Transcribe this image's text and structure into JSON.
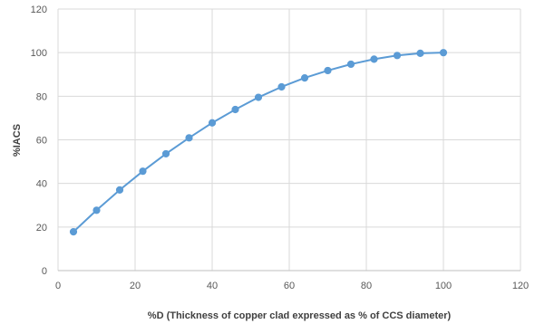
{
  "chart_data": {
    "type": "line",
    "xlabel": "%D (Thickness of copper clad expressed as % of CCS diameter)",
    "ylabel": "%IACS",
    "xlim": [
      0,
      120
    ],
    "ylim": [
      0,
      120
    ],
    "x_ticks": [
      0,
      20,
      40,
      60,
      80,
      100,
      120
    ],
    "y_ticks": [
      0,
      20,
      40,
      60,
      80,
      100,
      120
    ],
    "grid": true,
    "legend": "none",
    "series": [
      {
        "color": "#5B9BD5",
        "x": [
          4,
          10,
          16,
          22,
          28,
          34,
          40,
          46,
          52,
          58,
          64,
          70,
          76,
          82,
          88,
          94,
          100
        ],
        "values": [
          17.8,
          27.7,
          37,
          45.6,
          53.6,
          60.9,
          67.8,
          73.9,
          79.5,
          84.3,
          88.4,
          91.8,
          94.7,
          97,
          98.7,
          99.7,
          100
        ]
      }
    ]
  }
}
